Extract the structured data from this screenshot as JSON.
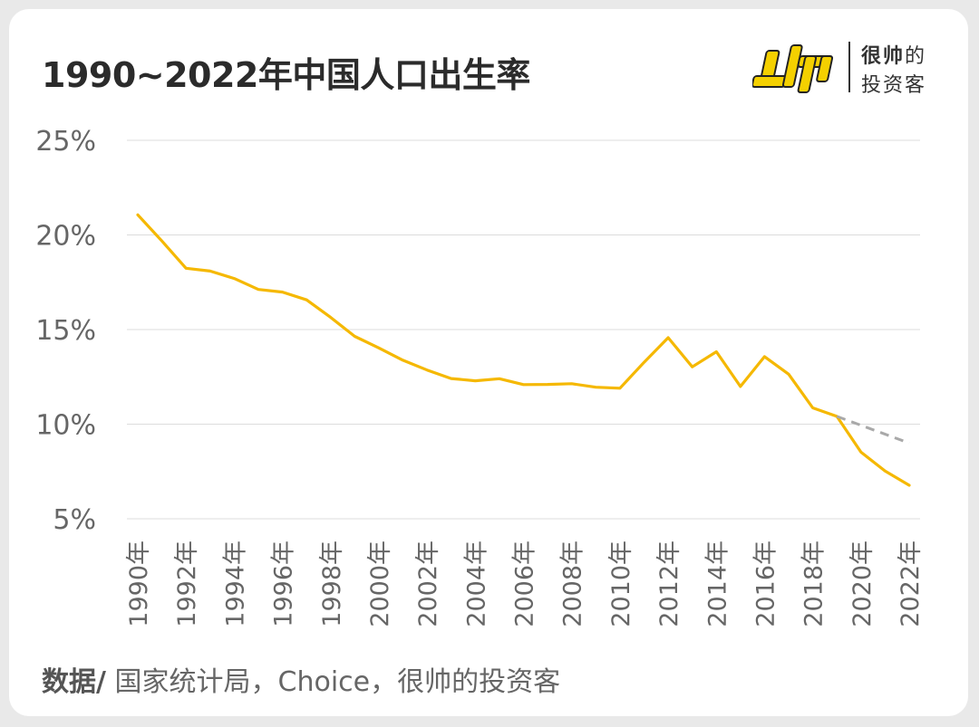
{
  "title": "1990~2022年中国人口出生率",
  "logo": {
    "line1_bold": "很帅",
    "line1_rest": "的",
    "line2": "投资客"
  },
  "source": {
    "label": "数据/",
    "text": " 国家统计局，Choice，很帅的投资客"
  },
  "colors": {
    "line": "#f5b800",
    "projection": "#a9a9a9",
    "grid": "#dcdcdc",
    "tick": "#666666",
    "logo_yellow": "#f4d000"
  },
  "chart_data": {
    "type": "line",
    "title": "1990~2022年中国人口出生率",
    "xlabel": "",
    "ylabel": "",
    "ylim": [
      5,
      25
    ],
    "grid": true,
    "yticks": [
      "25%",
      "20%",
      "15%",
      "10%",
      "5%"
    ],
    "ytick_values": [
      25,
      20,
      15,
      10,
      5
    ],
    "xtick_labels": [
      "1990年",
      "1992年",
      "1994年",
      "1996年",
      "1998年",
      "2000年",
      "2002年",
      "2004年",
      "2006年",
      "2008年",
      "2010年",
      "2012年",
      "2014年",
      "2016年",
      "2018年",
      "2020年",
      "2022年"
    ],
    "x": [
      1990,
      1991,
      1992,
      1993,
      1994,
      1995,
      1996,
      1997,
      1998,
      1999,
      2000,
      2001,
      2002,
      2003,
      2004,
      2005,
      2006,
      2007,
      2008,
      2009,
      2010,
      2011,
      2012,
      2013,
      2014,
      2015,
      2016,
      2017,
      2018,
      2019,
      2020,
      2021,
      2022
    ],
    "series": [
      {
        "values": [
          21.06,
          19.68,
          18.24,
          18.09,
          17.7,
          17.12,
          16.98,
          16.57,
          15.64,
          14.64,
          14.03,
          13.38,
          12.86,
          12.41,
          12.29,
          12.4,
          12.09,
          12.1,
          12.14,
          11.95,
          11.9,
          13.27,
          14.57,
          13.03,
          13.83,
          11.99,
          13.57,
          12.64,
          10.86,
          10.41,
          8.52,
          7.52,
          6.77
        ]
      },
      {
        "style": "dashed",
        "x": [
          2019,
          2022
        ],
        "values": [
          10.41,
          9.0
        ]
      }
    ]
  }
}
